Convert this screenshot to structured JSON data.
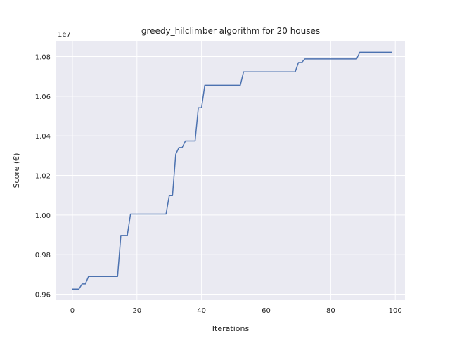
{
  "chart_data": {
    "type": "line",
    "title": "greedy_hilclimber algorithm for 20 houses",
    "xlabel": "Iterations",
    "ylabel": "Score (€)",
    "offset_text": "1e7",
    "xlim": [
      -5,
      103
    ],
    "ylim": [
      0.957,
      1.088
    ],
    "x_ticks": [
      0,
      20,
      40,
      60,
      80,
      100
    ],
    "x_tick_labels": [
      "0",
      "20",
      "40",
      "60",
      "80",
      "100"
    ],
    "y_ticks": [
      0.96,
      0.98,
      1.0,
      1.02,
      1.04,
      1.06,
      1.08
    ],
    "y_tick_labels": [
      "0.96",
      "0.98",
      "1.00",
      "1.02",
      "1.04",
      "1.06",
      "1.08"
    ],
    "grid": true,
    "background": "#eaeaf2",
    "grid_color": "#ffffff",
    "series": [
      {
        "color": "#4c72b0",
        "x": [
          0,
          2,
          3,
          4,
          5,
          14,
          15,
          16,
          17,
          18,
          29,
          30,
          31,
          32,
          33,
          34,
          35,
          36,
          37,
          38,
          39,
          40,
          41,
          52,
          53,
          69,
          70,
          71,
          72,
          88,
          89,
          99
        ],
        "y": [
          0.9626,
          0.9626,
          0.9652,
          0.9652,
          0.969,
          0.969,
          0.9897,
          0.9897,
          0.9897,
          1.0005,
          1.0005,
          1.0098,
          1.0098,
          1.0307,
          1.0341,
          1.0341,
          1.0374,
          1.0374,
          1.0374,
          1.0374,
          1.0542,
          1.0542,
          1.0655,
          1.0655,
          1.0723,
          1.0723,
          1.077,
          1.077,
          1.0788,
          1.0788,
          1.0822,
          1.0822
        ]
      }
    ]
  }
}
